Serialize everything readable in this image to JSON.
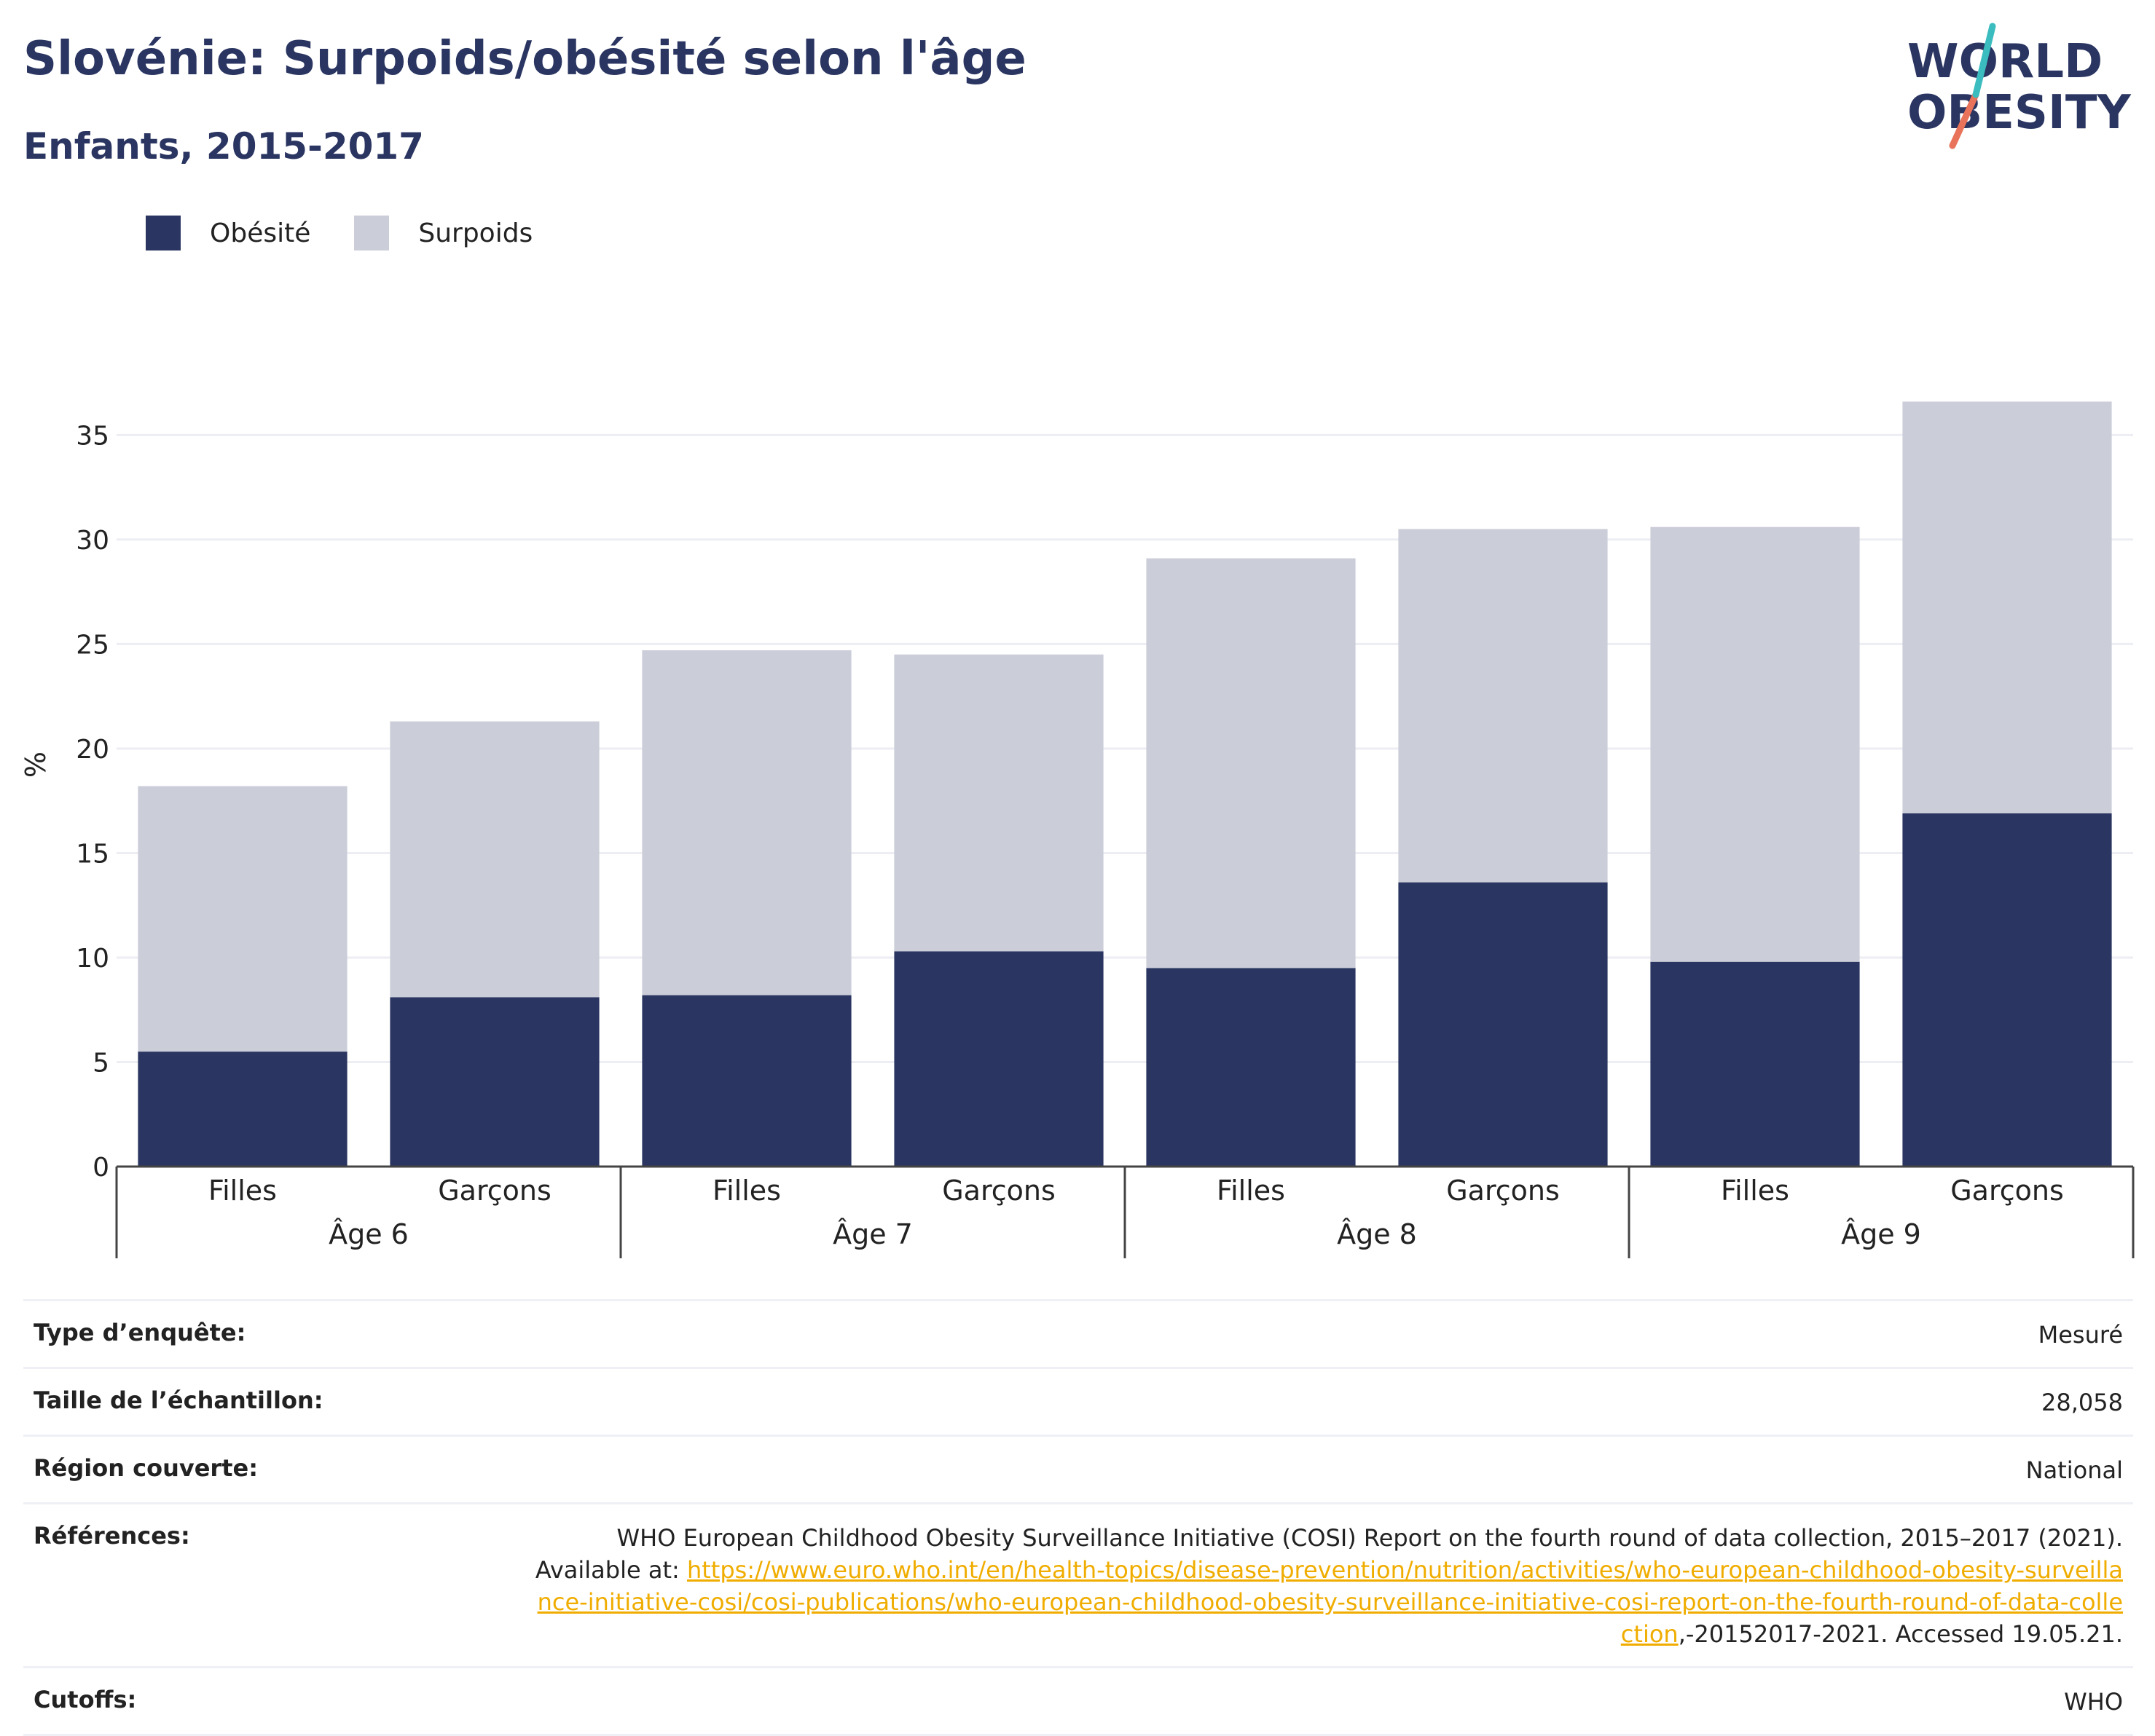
{
  "title": "Slovénie: Surpoids/obésité selon l'âge",
  "subtitle": "Enfants, 2015-2017",
  "logo": {
    "line1": "WORLD",
    "line2": "OBESITY"
  },
  "colors": {
    "obesity": "#2a3561",
    "overweight": "#cbcdd9",
    "title": "#2a3561",
    "link": "#f0ad00"
  },
  "chart_data": {
    "type": "bar",
    "stacked": true,
    "ylabel": "%",
    "xlabel": "",
    "ylim": [
      0,
      37
    ],
    "yticks": [
      0,
      5,
      10,
      15,
      20,
      25,
      30,
      35
    ],
    "grid": true,
    "legend_position": "top-left",
    "categories": [
      "Filles",
      "Garçons",
      "Filles",
      "Garçons",
      "Filles",
      "Garçons",
      "Filles",
      "Garçons"
    ],
    "groups": [
      "Âge 6",
      "Âge 7",
      "Âge 8",
      "Âge 9"
    ],
    "series": [
      {
        "name": "Obésité",
        "values": [
          5.5,
          8.1,
          8.2,
          10.3,
          9.5,
          13.6,
          9.8,
          16.9
        ]
      },
      {
        "name": "Surpoids",
        "values": [
          12.7,
          13.2,
          16.5,
          14.2,
          19.6,
          16.9,
          20.8,
          19.7
        ]
      }
    ]
  },
  "info": {
    "rows": [
      {
        "label": "Type d’enquête:",
        "value": "Mesuré"
      },
      {
        "label": "Taille de l’échantillon:",
        "value": "28,058"
      },
      {
        "label": "Région couverte:",
        "value": "National"
      }
    ],
    "references": {
      "label": "Références:",
      "text": "WHO European Childhood Obesity Surveillance Initiative (COSI) Report on the fourth round of data collection, 2015–2017 (2021).",
      "available": "Available at:",
      "link": "https://www.euro.who.int/en/health-topics/disease-prevention/nutrition/activities/who-european-childhood-obesity-surveillance-initiative-cosi/cosi-publications/who-european-childhood-obesity-surveillance-initiative-cosi-report-on-the-fourth-round-of-data-collection",
      "suffix": ",-20152017-2021. Accessed 19.05.21."
    },
    "cutoffs": {
      "label": "Cutoffs:",
      "value": "WHO"
    }
  }
}
